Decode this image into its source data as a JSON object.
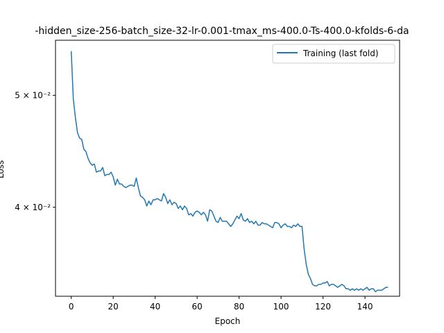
{
  "chart_data": {
    "type": "line",
    "title": "-hidden_size-256-batch_size-32-lr-0.001-tmax_ms-400.0-Ts-400.0-kfolds-6-da",
    "xlabel": "Epoch",
    "ylabel": "Loss",
    "xlim": [
      -7.5,
      156.5
    ],
    "ylim": [
      0.0335,
      0.0558
    ],
    "yscale": "log",
    "x_ticks": [
      0,
      20,
      40,
      60,
      80,
      100,
      120,
      140
    ],
    "y_ticks": [
      {
        "value": 0.04,
        "label": "4 × 10⁻²"
      },
      {
        "value": 0.05,
        "label": "5 × 10⁻²"
      }
    ],
    "grid": false,
    "legend_position": "top-right",
    "series": [
      {
        "name": "Training (last fold)",
        "color": "#1f77b4",
        "y": [
          0.0546,
          0.0496,
          0.0478,
          0.0464,
          0.0459,
          0.0458,
          0.0449,
          0.0447,
          0.0441,
          0.0437,
          0.0435,
          0.0436,
          0.0429,
          0.043,
          0.043,
          0.0433,
          0.0426,
          0.0427,
          0.0427,
          0.0429,
          0.0425,
          0.0418,
          0.0423,
          0.0419,
          0.0419,
          0.0417,
          0.0416,
          0.0417,
          0.0418,
          0.0418,
          0.0417,
          0.0424,
          0.0416,
          0.0409,
          0.0408,
          0.0406,
          0.0401,
          0.0405,
          0.0402,
          0.0406,
          0.0406,
          0.0407,
          0.0406,
          0.0405,
          0.0411,
          0.0408,
          0.0403,
          0.0406,
          0.0402,
          0.0404,
          0.0403,
          0.0399,
          0.0401,
          0.0398,
          0.0401,
          0.0399,
          0.0394,
          0.0395,
          0.0393,
          0.0396,
          0.0397,
          0.0396,
          0.0394,
          0.0396,
          0.0394,
          0.0389,
          0.0398,
          0.0397,
          0.0393,
          0.0389,
          0.0388,
          0.0392,
          0.0389,
          0.0389,
          0.0389,
          0.0387,
          0.0385,
          0.0387,
          0.039,
          0.0393,
          0.0391,
          0.0395,
          0.039,
          0.0389,
          0.0391,
          0.0388,
          0.0389,
          0.0387,
          0.0389,
          0.0386,
          0.0386,
          0.0388,
          0.0387,
          0.0387,
          0.0386,
          0.0385,
          0.0384,
          0.0388,
          0.0388,
          0.0387,
          0.0384,
          0.0386,
          0.0387,
          0.0385,
          0.0385,
          0.0384,
          0.0386,
          0.0385,
          0.0387,
          0.0385,
          0.0385,
          0.0368,
          0.0357,
          0.035,
          0.0347,
          0.0343,
          0.0342,
          0.0342,
          0.0343,
          0.0343,
          0.0344,
          0.0344,
          0.0345,
          0.0342,
          0.0343,
          0.0343,
          0.0342,
          0.0341,
          0.0342,
          0.0343,
          0.0342,
          0.034,
          0.034,
          0.0339,
          0.034,
          0.0339,
          0.034,
          0.0339,
          0.034,
          0.0339,
          0.034,
          0.0341,
          0.0339,
          0.034,
          0.034,
          0.0338,
          0.0339,
          0.0339,
          0.0339,
          0.034,
          0.0341,
          0.0341
        ]
      }
    ]
  }
}
